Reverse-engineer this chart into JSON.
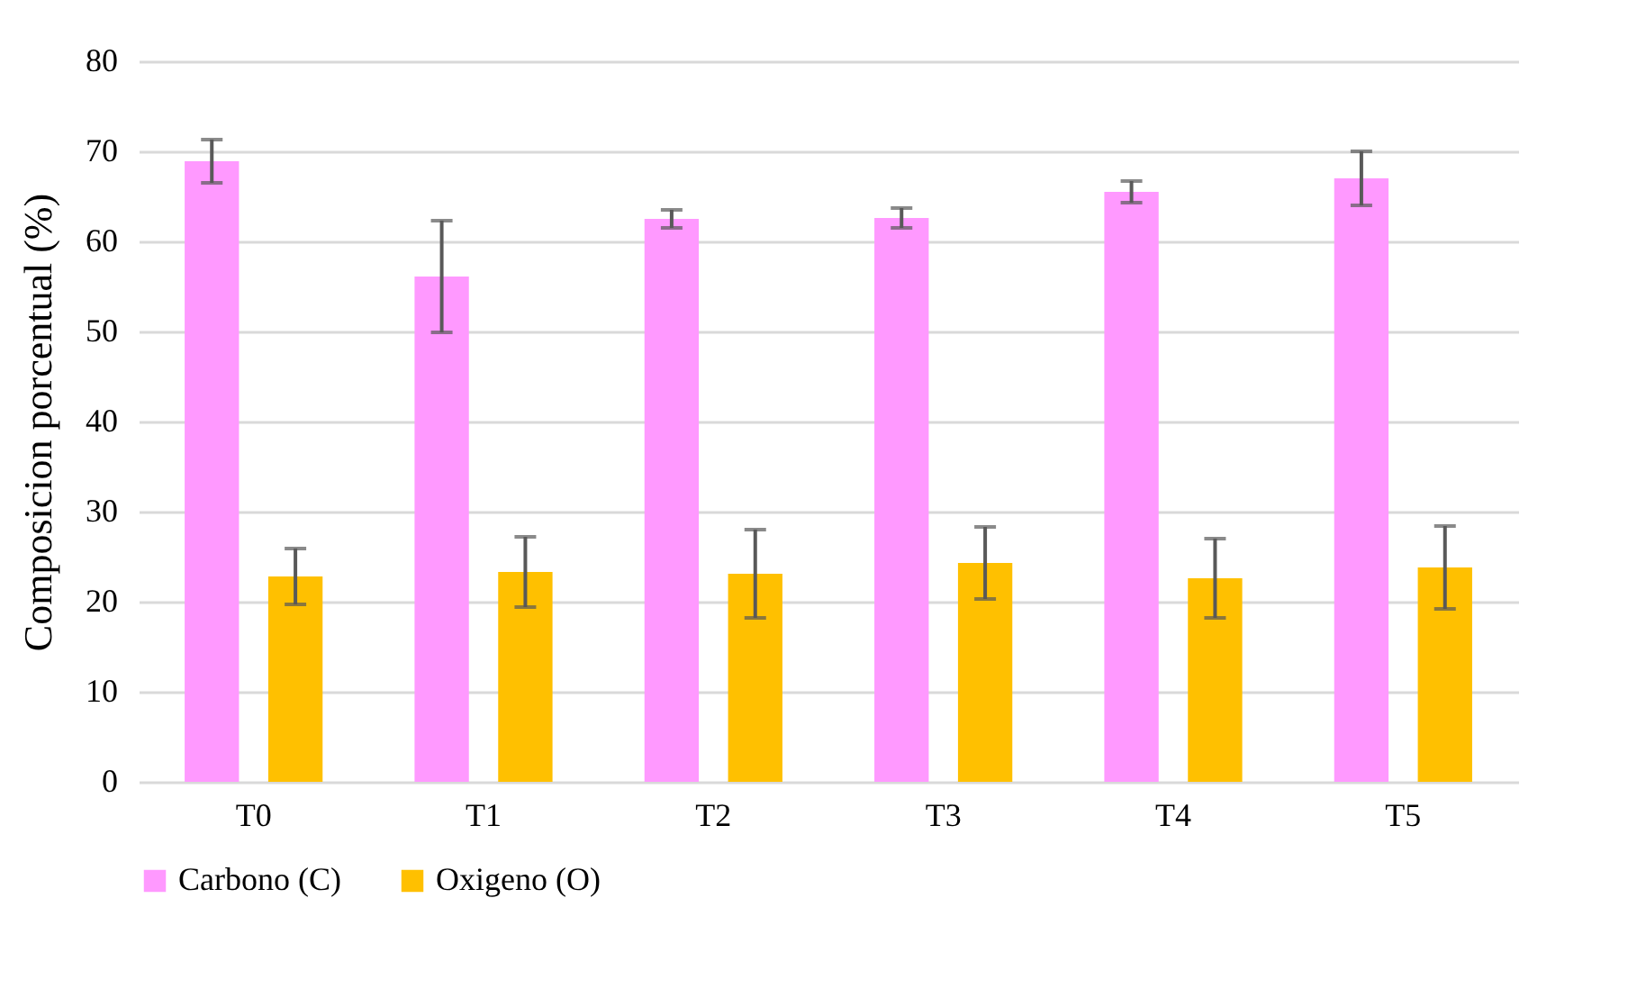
{
  "chart_data": {
    "type": "bar",
    "ylabel": "Composicion porcentual (%)",
    "categories": [
      "T0",
      "T1",
      "T2",
      "T3",
      "T4",
      "T5"
    ],
    "series": [
      {
        "name": "Carbono (C)",
        "color": "#ff99ff",
        "values": [
          68.9,
          56.1,
          62.5,
          62.6,
          65.5,
          67.0
        ],
        "errors": [
          2.4,
          6.2,
          1.0,
          1.1,
          1.2,
          3.0
        ]
      },
      {
        "name": "Oxigeno (O)",
        "color": "#ffc000",
        "values": [
          22.8,
          23.3,
          23.1,
          24.3,
          22.6,
          23.8
        ],
        "errors": [
          3.1,
          3.9,
          4.9,
          4.0,
          4.4,
          4.6
        ]
      }
    ],
    "ylim": [
      0,
      80
    ],
    "yticks": [
      0,
      10,
      20,
      30,
      40,
      50,
      60,
      70,
      80
    ],
    "grid": "y",
    "legend": "bottom"
  }
}
